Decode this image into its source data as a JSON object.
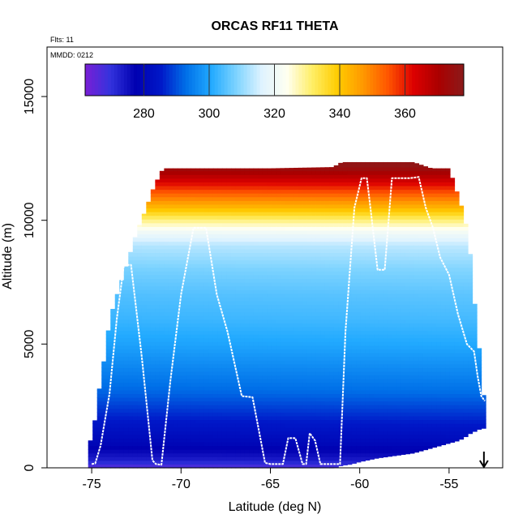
{
  "chart_data": {
    "type": "heatmap",
    "title": "ORCAS RF11 THETA",
    "annotations": {
      "flights": "Flts: 11",
      "date": "MMDD: 0212"
    },
    "xlabel": "Latitude (deg N)",
    "ylabel": "Altitude (m)",
    "xlim": [
      -77.5,
      -52
    ],
    "ylim": [
      0,
      17000
    ],
    "x_ticks": [
      -75,
      -70,
      -65,
      -60,
      -55
    ],
    "x_tick_labels": [
      "-75",
      "-70",
      "-65",
      "-60",
      "-55"
    ],
    "y_ticks": [
      0,
      5000,
      10000,
      15000
    ],
    "y_tick_labels": [
      "0",
      "5000",
      "10000",
      "15000"
    ],
    "colorbar": {
      "range": [
        262,
        378
      ],
      "ticks": [
        280,
        300,
        320,
        340,
        360
      ],
      "tick_labels": [
        "280",
        "300",
        "320",
        "340",
        "360"
      ],
      "colors": [
        "#7a1fd6",
        "#3333dd",
        "#0000b0",
        "#0018c8",
        "#0070e8",
        "#22aaff",
        "#7fd4ff",
        "#dff3ff",
        "#fffff0",
        "#ffee66",
        "#ffcc00",
        "#ff9900",
        "#ff5500",
        "#dd0000",
        "#aa0000",
        "#8b1a1a"
      ]
    },
    "theta_profile": {
      "altitudes": [
        0,
        300,
        600,
        1000,
        2000,
        3000,
        4000,
        5000,
        6000,
        7000,
        8000,
        9000,
        9500,
        10000,
        10500,
        11000,
        11500,
        12000,
        12200
      ],
      "values": [
        266,
        273,
        276,
        280,
        286,
        292,
        296,
        300,
        303,
        305,
        308,
        313,
        320,
        330,
        342,
        352,
        362,
        372,
        376
      ]
    },
    "data_extent": {
      "latitudes": [
        -75.2,
        -74.8,
        -74.5,
        -74.2,
        -74.0,
        -73.5,
        -73.0,
        -72.5,
        -72.0,
        -71.5,
        -71.0,
        -70.0,
        -65.0,
        -61.5,
        -61.0,
        -60.5,
        -60.0,
        -59.0,
        -58.0,
        -57.0,
        -56.0,
        -55.0,
        -54.5,
        -54.2,
        -54.0,
        -53.8,
        -53.5,
        -53.2,
        -53.0
      ],
      "bottom_alt": [
        0,
        0,
        0,
        0,
        0,
        0,
        0,
        0,
        0,
        0,
        0,
        0,
        0,
        0,
        100,
        150,
        250,
        400,
        500,
        600,
        800,
        1000,
        1100,
        1200,
        1300,
        1400,
        1500,
        1600,
        1600
      ],
      "top_alt": [
        700,
        2000,
        3600,
        4800,
        6000,
        7200,
        8300,
        9500,
        10400,
        11400,
        12100,
        12100,
        12100,
        12150,
        12350,
        12350,
        12350,
        12350,
        12350,
        12350,
        12100,
        12100,
        11000,
        10300,
        9600,
        8500,
        6000,
        4000,
        2300
      ]
    },
    "flight_track": {
      "lat": [
        -75.0,
        -74.8,
        -74.5,
        -74.0,
        -73.6,
        -73.2,
        -72.8,
        -72.2,
        -71.6,
        -71.4,
        -71.1,
        -70.6,
        -70.0,
        -69.3,
        -68.6,
        -68.0,
        -67.4,
        -66.6,
        -66.0,
        -65.3,
        -65.0,
        -64.3,
        -64.0,
        -63.6,
        -63.2,
        -63.0,
        -62.8,
        -62.5,
        -62.2,
        -61.6,
        -61.1,
        -60.8,
        -60.3,
        -59.9,
        -59.6,
        -59.4,
        -59.0,
        -58.6,
        -58.2,
        -57.8,
        -57.5,
        -57.2,
        -56.7,
        -56.3,
        -55.9,
        -55.5,
        -55.0,
        -54.5,
        -54.0,
        -53.6,
        -53.4,
        -53.2,
        -53.0
      ],
      "alt": [
        150,
        180,
        900,
        3000,
        6000,
        8200,
        8200,
        4500,
        300,
        150,
        120,
        3500,
        7000,
        9700,
        9700,
        7000,
        5500,
        2900,
        2850,
        200,
        150,
        150,
        1200,
        1200,
        150,
        150,
        1400,
        1100,
        150,
        150,
        150,
        5500,
        10500,
        11700,
        11700,
        10500,
        8000,
        8000,
        11700,
        11700,
        11700,
        11700,
        11750,
        10500,
        9700,
        8500,
        7800,
        6200,
        5000,
        4700,
        3700,
        2900,
        2700
      ],
      "color": "#ffffff"
    },
    "marker": {
      "label": "arrow",
      "lat": -53.05
    }
  }
}
